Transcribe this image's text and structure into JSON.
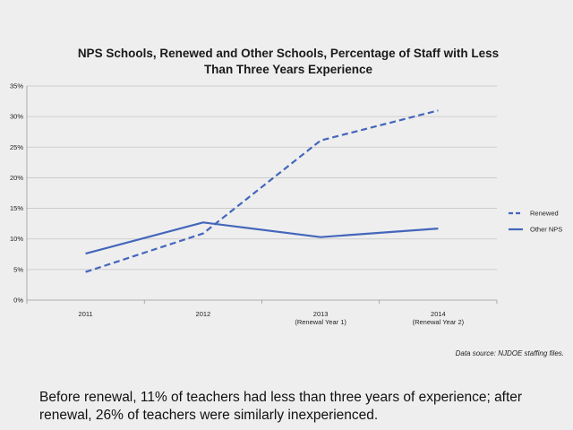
{
  "chart_data": {
    "type": "line",
    "title_lines": [
      "NPS Schools, Renewed and Other Schools, Percentage of Staff with Less",
      "Than Three Years Experience"
    ],
    "categories": [
      {
        "label": "2011",
        "sublabel": ""
      },
      {
        "label": "2012",
        "sublabel": ""
      },
      {
        "label": "2013",
        "sublabel": "(Renewal Year 1)"
      },
      {
        "label": "2014",
        "sublabel": "(Renewal Year 2)"
      }
    ],
    "series": [
      {
        "name": "Renewed",
        "style": "dashed",
        "color": "#4466bb",
        "values": [
          4.6,
          10.9,
          26.1,
          31.0
        ]
      },
      {
        "name": "Other NPS",
        "style": "solid",
        "color": "#4466bb",
        "values": [
          7.6,
          12.7,
          10.3,
          11.7
        ]
      }
    ],
    "y_ticks": [
      "0%",
      "5%",
      "10%",
      "15%",
      "20%",
      "25%",
      "30%",
      "35%"
    ],
    "ylim": [
      0,
      35
    ],
    "y_step": 5,
    "xlabel": "",
    "ylabel": "",
    "grid": true,
    "legend_position": "right"
  },
  "source_note": "Data source: NJDOE staffing  files.",
  "caption": "Before renewal, 11% of teachers had less than three years of experience; after renewal, 26% of teachers were similarly inexperienced."
}
